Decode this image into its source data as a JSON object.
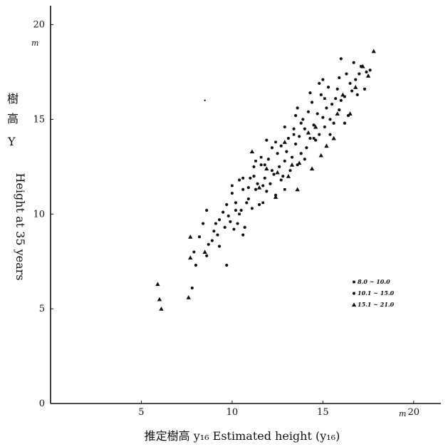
{
  "chart_data": {
    "type": "scatter",
    "title": "",
    "xlabel": "推定樹高 y₁₆  Estimated height (y₁₆)",
    "ylabel_cjk": [
      "樹",
      "高"
    ],
    "ylabel_symbol": "Y",
    "ylabel_en": "Height at 35 years",
    "x_unit": "m",
    "y_unit": "m",
    "xlim": [
      0,
      21.5
    ],
    "ylim": [
      0,
      21
    ],
    "x_ticks": [
      5,
      10,
      15,
      20
    ],
    "y_ticks": [
      0,
      5,
      10,
      15,
      20
    ],
    "grid": false,
    "legend_position": "right",
    "legend": [
      {
        "label": "8.0 ~ 10.0",
        "marker": "square"
      },
      {
        "label": "10.1 ~ 15.0",
        "marker": "circle"
      },
      {
        "label": "15.1 ~ 21.0",
        "marker": "triangle"
      }
    ],
    "series": [
      {
        "marker": "triangle",
        "points": [
          [
            5.9,
            6.3
          ],
          [
            6.0,
            5.5
          ],
          [
            6.1,
            5.0
          ],
          [
            7.6,
            5.6
          ],
          [
            7.7,
            8.8
          ],
          [
            7.7,
            7.7
          ],
          [
            8.5,
            8.0
          ],
          [
            11.1,
            13.3
          ],
          [
            11.5,
            11.4
          ],
          [
            11.9,
            12.4
          ],
          [
            12.5,
            12.2
          ],
          [
            12.4,
            10.9
          ],
          [
            12.9,
            13.8
          ],
          [
            13.3,
            12.6
          ],
          [
            13.6,
            11.3
          ],
          [
            13.7,
            12.7
          ],
          [
            14.2,
            14.3
          ],
          [
            14.4,
            12.4
          ],
          [
            14.6,
            14.6
          ],
          [
            15.2,
            13.6
          ],
          [
            15.6,
            14.0
          ],
          [
            16.1,
            16.3
          ],
          [
            16.5,
            15.3
          ],
          [
            16.8,
            16.7
          ],
          [
            17.2,
            17.8
          ],
          [
            17.5,
            17.3
          ],
          [
            17.8,
            18.6
          ],
          [
            15.8,
            15.3
          ],
          [
            14.9,
            13.1
          ],
          [
            13.1,
            12.0
          ]
        ]
      },
      {
        "marker": "circle",
        "points": [
          [
            7.8,
            6.1
          ],
          [
            7.9,
            8.0
          ],
          [
            8.0,
            7.3
          ],
          [
            8.2,
            8.8
          ],
          [
            8.4,
            9.5
          ],
          [
            8.6,
            7.8
          ],
          [
            8.6,
            10.2
          ],
          [
            8.7,
            8.4
          ],
          [
            8.9,
            8.6
          ],
          [
            9.0,
            9.1
          ],
          [
            9.2,
            8.9
          ],
          [
            9.3,
            9.7
          ],
          [
            9.3,
            8.3
          ],
          [
            9.5,
            10.1
          ],
          [
            9.6,
            9.3
          ],
          [
            9.7,
            7.3
          ],
          [
            9.7,
            10.5
          ],
          [
            9.9,
            9.6
          ],
          [
            10.0,
            11.1
          ],
          [
            10.1,
            9.2
          ],
          [
            10.2,
            10.6
          ],
          [
            10.3,
            9.5
          ],
          [
            10.4,
            11.8
          ],
          [
            10.5,
            10.2
          ],
          [
            10.6,
            11.3
          ],
          [
            10.6,
            8.9
          ],
          [
            10.7,
            9.3
          ],
          [
            10.8,
            10.6
          ],
          [
            10.9,
            10.8
          ],
          [
            11.0,
            11.9
          ],
          [
            11.1,
            10.3
          ],
          [
            11.2,
            12.0
          ],
          [
            11.3,
            11.3
          ],
          [
            11.4,
            11.6
          ],
          [
            11.5,
            10.5
          ],
          [
            11.6,
            12.6
          ],
          [
            11.7,
            11.5
          ],
          [
            11.8,
            11.9
          ],
          [
            11.9,
            11.2
          ],
          [
            12.0,
            12.9
          ],
          [
            12.1,
            11.6
          ],
          [
            12.2,
            12.3
          ],
          [
            12.3,
            12.1
          ],
          [
            12.4,
            11.0
          ],
          [
            12.5,
            13.2
          ],
          [
            12.6,
            12.5
          ],
          [
            12.7,
            13.6
          ],
          [
            12.8,
            12.0
          ],
          [
            12.9,
            12.8
          ],
          [
            13.0,
            13.3
          ],
          [
            13.1,
            14.0
          ],
          [
            13.2,
            12.3
          ],
          [
            13.3,
            13.0
          ],
          [
            13.4,
            14.5
          ],
          [
            13.5,
            13.7
          ],
          [
            13.6,
            12.6
          ],
          [
            13.7,
            14.1
          ],
          [
            13.8,
            13.2
          ],
          [
            13.9,
            15.0
          ],
          [
            14.0,
            14.5
          ],
          [
            14.1,
            13.5
          ],
          [
            14.2,
            15.4
          ],
          [
            14.3,
            14.0
          ],
          [
            14.4,
            15.9
          ],
          [
            14.5,
            14.7
          ],
          [
            14.6,
            13.9
          ],
          [
            14.7,
            15.3
          ],
          [
            14.8,
            14.2
          ],
          [
            14.9,
            16.3
          ],
          [
            15.0,
            15.1
          ],
          [
            15.1,
            14.6
          ],
          [
            15.2,
            15.6
          ],
          [
            15.3,
            16.7
          ],
          [
            15.4,
            15.0
          ],
          [
            15.5,
            15.8
          ],
          [
            15.6,
            14.8
          ],
          [
            15.7,
            16.1
          ],
          [
            15.8,
            16.6
          ],
          [
            15.9,
            15.5
          ],
          [
            16.0,
            16.0
          ],
          [
            16.0,
            18.2
          ],
          [
            16.2,
            14.8
          ],
          [
            16.3,
            17.4
          ],
          [
            16.4,
            15.2
          ],
          [
            16.5,
            16.9
          ],
          [
            16.7,
            18.0
          ],
          [
            16.9,
            16.3
          ],
          [
            17.0,
            17.4
          ],
          [
            17.4,
            17.5
          ],
          [
            17.6,
            17.6
          ],
          [
            16.6,
            16.5
          ],
          [
            15.4,
            14.2
          ],
          [
            14.0,
            12.9
          ],
          [
            13.8,
            14.8
          ],
          [
            12.2,
            13.5
          ],
          [
            11.8,
            12.6
          ],
          [
            11.2,
            12.5
          ],
          [
            10.6,
            11.9
          ],
          [
            10.2,
            10.2
          ],
          [
            9.8,
            9.9
          ],
          [
            9.1,
            9.5
          ],
          [
            12.7,
            11.8
          ],
          [
            13.5,
            15.2
          ],
          [
            14.8,
            16.9
          ],
          [
            15.9,
            17.2
          ],
          [
            16.8,
            17.1
          ],
          [
            17.3,
            16.6
          ],
          [
            10.9,
            11.4
          ],
          [
            11.9,
            13.9
          ],
          [
            12.9,
            14.6
          ],
          [
            13.6,
            15.6
          ],
          [
            14.3,
            16.4
          ],
          [
            15.0,
            17.1
          ]
        ]
      },
      {
        "marker": "square",
        "points": [
          [
            10.0,
            11.5
          ],
          [
            10.4,
            10.0
          ],
          [
            11.3,
            12.8
          ],
          [
            11.6,
            13.0
          ],
          [
            12.4,
            13.8
          ],
          [
            13.4,
            14.2
          ],
          [
            14.5,
            14.0
          ],
          [
            15.1,
            16.1
          ],
          [
            16.2,
            16.2
          ],
          [
            17.1,
            17.8
          ],
          [
            12.9,
            11.3
          ],
          [
            11.7,
            10.6
          ]
        ]
      },
      {
        "marker": "stray-dot",
        "points": [
          [
            8.5,
            16.0
          ]
        ]
      }
    ]
  }
}
